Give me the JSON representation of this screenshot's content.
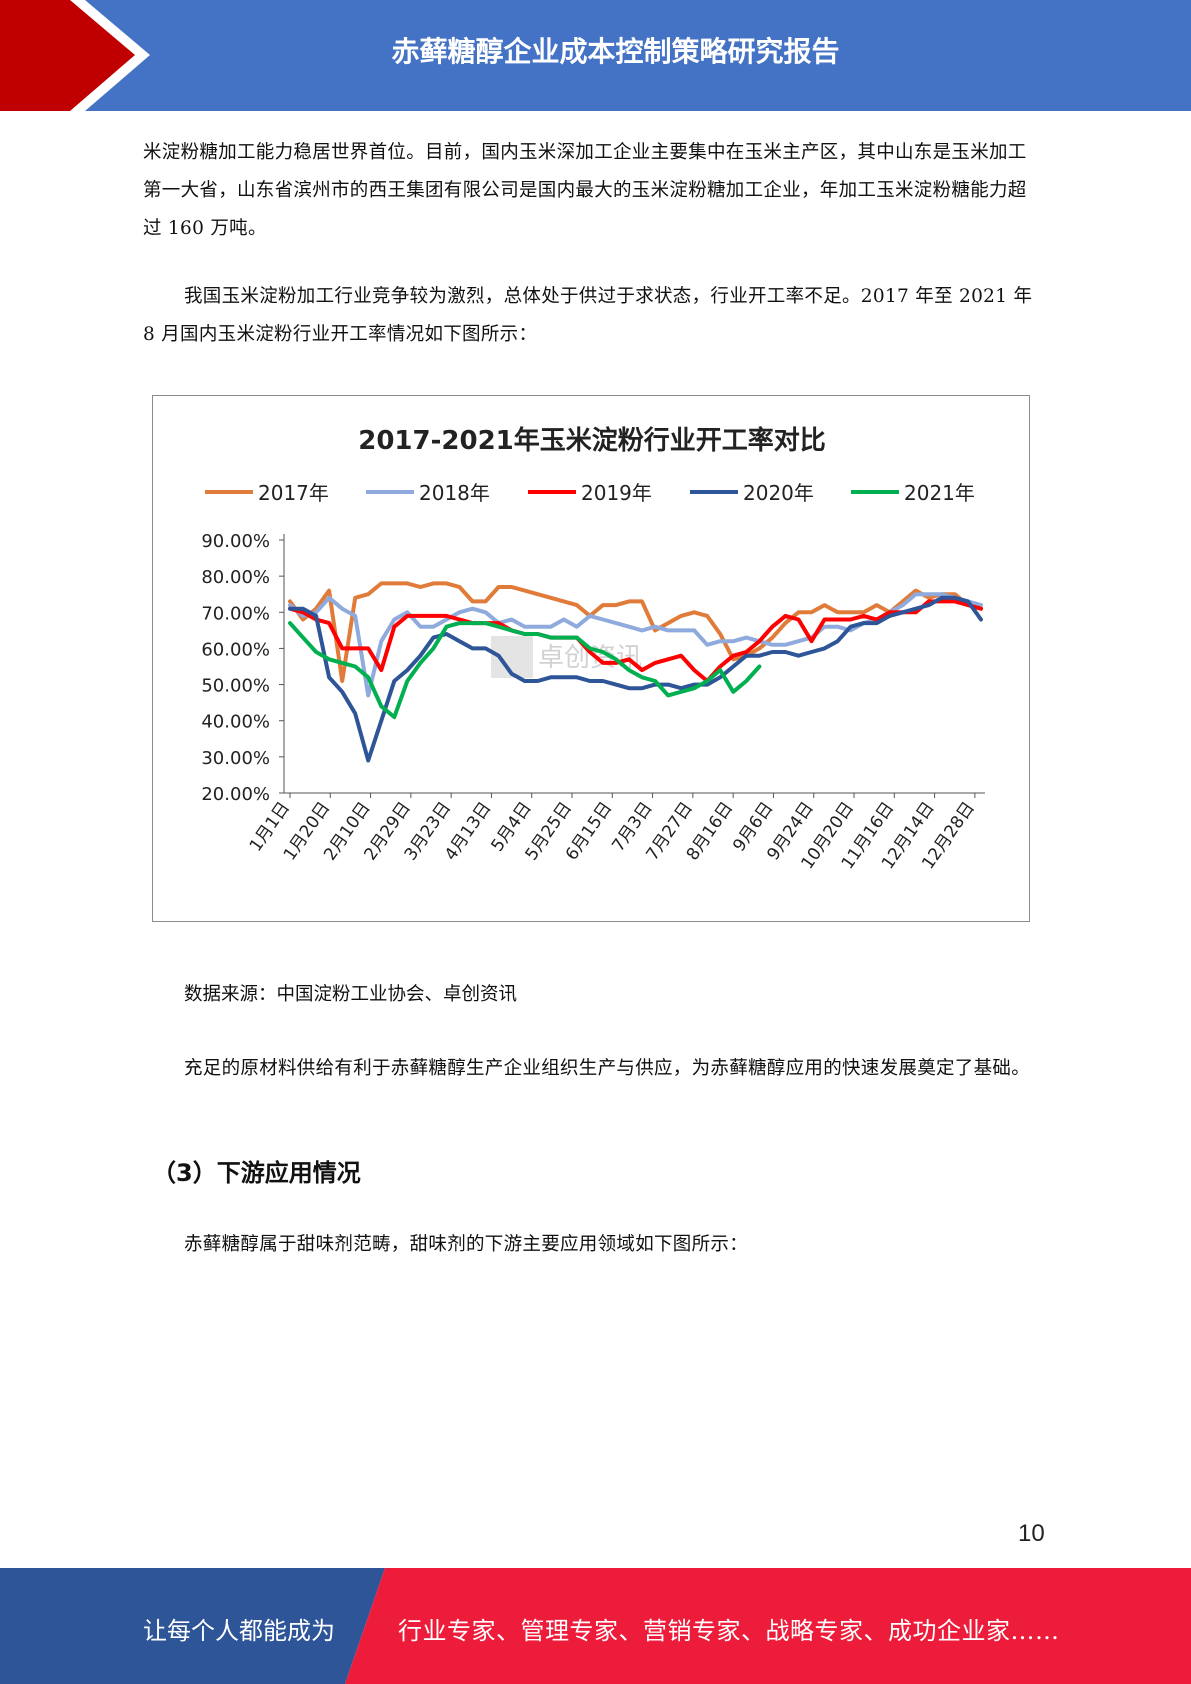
{
  "header": {
    "title": "赤藓糖醇企业成本控制策略研究报告"
  },
  "body": {
    "para1": "米淀粉糖加工能力稳居世界首位。目前，国内玉米深加工企业主要集中在玉米主产区，其中山东是玉米加工第一大省，山东省滨州市的西王集团有限公司是国内最大的玉米淀粉糖加工企业，年加工玉米淀粉糖能力超过 160 万吨。",
    "para2": "我国玉米淀粉加工行业竞争较为激烈，总体处于供过于求状态，行业开工率不足。2017 年至 2021 年 8 月国内玉米淀粉行业开工率情况如下图所示：",
    "source": "数据来源：中国淀粉工业协会、卓创资讯",
    "para3": "充足的原材料供给有利于赤藓糖醇生产企业组织生产与供应，为赤藓糖醇应用的快速发展奠定了基础。",
    "section_title": "（3）下游应用情况",
    "para4": "赤藓糖醇属于甜味剂范畴，甜味剂的下游主要应用领域如下图所示："
  },
  "page_number": "10",
  "footer": {
    "left_text": "让每个人都能成为",
    "right_text": "行业专家、管理专家、营销专家、战略专家、成功企业家……"
  },
  "colors": {
    "header_blue": "#4472c4",
    "header_red": "#c00000",
    "footer_blue": "#2e5597",
    "footer_red": "#ee1c3b"
  },
  "chart_data": {
    "type": "line",
    "title": "2017-2021年玉米淀粉行业开工率对比",
    "ylim": [
      20,
      90
    ],
    "yticks": [
      "90.00%",
      "80.00%",
      "70.00%",
      "60.00%",
      "50.00%",
      "40.00%",
      "30.00%",
      "20.00%"
    ],
    "xlabels": [
      "1月1日",
      "1月20日",
      "2月10日",
      "2月29日",
      "3月23日",
      "4月13日",
      "5月4日",
      "5月25日",
      "6月15日",
      "7月3日",
      "7月27日",
      "8月16日",
      "9月6日",
      "9月24日",
      "10月20日",
      "11月16日",
      "12月14日",
      "12月28日"
    ],
    "watermark": "卓创资讯",
    "legend_position": "top",
    "series": [
      {
        "name": "2017年",
        "color": "#e07b39",
        "values": [
          73,
          68,
          71,
          76,
          51,
          74,
          75,
          78,
          78,
          78,
          77,
          78,
          78,
          77,
          73,
          73,
          77,
          77,
          76,
          75,
          74,
          73,
          72,
          69,
          72,
          72,
          73,
          73,
          65,
          67,
          69,
          70,
          69,
          64,
          57,
          58,
          60,
          63,
          67,
          70,
          70,
          72,
          70,
          70,
          70,
          72,
          70,
          73,
          76,
          74,
          75,
          75,
          72,
          71
        ]
      },
      {
        "name": "2018年",
        "color": "#8faadc",
        "values": [
          72,
          69,
          70,
          74,
          71,
          69,
          47,
          62,
          68,
          70,
          66,
          66,
          68,
          70,
          71,
          70,
          67,
          68,
          66,
          66,
          66,
          68,
          66,
          69,
          68,
          67,
          66,
          65,
          66,
          65,
          65,
          65,
          61,
          62,
          62,
          63,
          62,
          61,
          61,
          62,
          63,
          66,
          66,
          65,
          67,
          68,
          70,
          72,
          75,
          75,
          75,
          74,
          73,
          72
        ]
      },
      {
        "name": "2019年",
        "color": "#ff0000",
        "values": [
          71,
          70,
          68,
          67,
          60,
          60,
          60,
          54,
          66,
          69,
          69,
          69,
          69,
          68,
          67,
          67,
          67,
          65,
          64,
          64,
          63,
          63,
          63,
          59,
          56,
          56,
          57,
          54,
          56,
          57,
          58,
          54,
          51,
          55,
          58,
          59,
          62,
          66,
          69,
          68,
          62,
          68,
          68,
          68,
          69,
          68,
          70,
          70,
          70,
          73,
          73,
          73,
          72,
          71
        ]
      },
      {
        "name": "2020年",
        "color": "#2e5597",
        "values": [
          71,
          71,
          69,
          52,
          48,
          42,
          29,
          40,
          51,
          54,
          58,
          63,
          64,
          62,
          60,
          60,
          58,
          53,
          51,
          51,
          52,
          52,
          52,
          51,
          51,
          50,
          49,
          49,
          50,
          50,
          49,
          50,
          50,
          52,
          55,
          58,
          58,
          59,
          59,
          58,
          59,
          60,
          62,
          66,
          67,
          67,
          69,
          70,
          71,
          72,
          74,
          74,
          73,
          68
        ]
      },
      {
        "name": "2021年",
        "color": "#00b050",
        "values": [
          67,
          63,
          59,
          57,
          56,
          55,
          52,
          44,
          41,
          51,
          56,
          60,
          66,
          67,
          67,
          67,
          66,
          65,
          64,
          64,
          63,
          63,
          63,
          60,
          59,
          57,
          54,
          52,
          51,
          47,
          48,
          49,
          51,
          54,
          48,
          51,
          55
        ]
      }
    ]
  }
}
